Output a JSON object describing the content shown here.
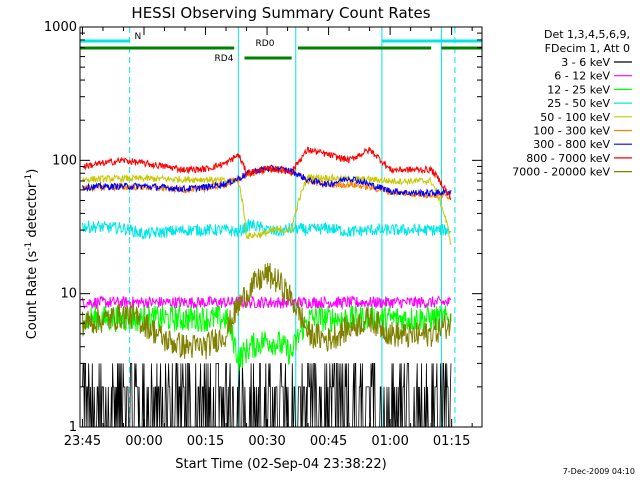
{
  "chart_data": {
    "type": "line",
    "title": "HESSI Observing Summary Count Rates",
    "xlabel": "Start Time (02-Sep-04 23:38:22)",
    "ylabel_main": "Count Rate (s",
    "ylabel_sup1": "-1",
    "ylabel_mid": " detector",
    "ylabel_sup2": "-1",
    "ylabel_end": ")",
    "y_scale": "log",
    "ylim": [
      1,
      1000
    ],
    "xlim_minutes": [
      -15.6,
      82.4
    ],
    "grid": false,
    "legend_position": "right",
    "x_ticks": [
      {
        "label": "23:45",
        "t": -15
      },
      {
        "label": "00:00",
        "t": 0
      },
      {
        "label": "00:15",
        "t": 15
      },
      {
        "label": "00:30",
        "t": 30
      },
      {
        "label": "00:45",
        "t": 45
      },
      {
        "label": "01:00",
        "t": 60
      },
      {
        "label": "01:15",
        "t": 75
      }
    ],
    "y_ticks": [
      {
        "label": "1",
        "v": 1
      },
      {
        "label": "10",
        "v": 10
      },
      {
        "label": "100",
        "v": 100
      },
      {
        "label": "1000",
        "v": 1000
      }
    ],
    "legend_header": [
      "Det 1,3,4,5,6,9,",
      "FDecim 1, Att 0"
    ],
    "series": [
      {
        "name": "3 - 6 keV",
        "color": "#000000",
        "t": [
          -15,
          -8,
          -5,
          0,
          5,
          10,
          15,
          20,
          23,
          26,
          30,
          33,
          36,
          40,
          45,
          50,
          55,
          60,
          65,
          70,
          75
        ],
        "y": [
          1.5,
          1.4,
          1.3,
          1.4,
          1.6,
          1.5,
          1.4,
          1.3,
          1.6,
          2.3,
          1.4,
          1.3,
          1.5,
          2.5,
          1.7,
          1.6,
          1.8,
          2.2,
          1.6,
          1.5,
          1.6
        ]
      },
      {
        "name": "6 - 12 keV",
        "color": "#ff00ff",
        "t": [
          -15,
          0,
          15,
          25,
          35,
          45,
          60,
          75
        ],
        "y": [
          8.6,
          8.6,
          8.6,
          8.6,
          8.6,
          8.6,
          8.6,
          8.6
        ]
      },
      {
        "name": "12 - 25 keV",
        "color": "#00ff00",
        "t": [
          -15,
          -8,
          -4,
          0,
          5,
          10,
          15,
          20,
          23,
          26,
          30,
          33,
          36,
          40,
          45,
          50,
          55,
          60,
          65,
          70,
          75
        ],
        "y": [
          6.5,
          6.5,
          6.5,
          6.5,
          6.5,
          6.5,
          6.5,
          6.5,
          3.2,
          4.0,
          4.5,
          4.2,
          3.5,
          6.5,
          6.5,
          6.5,
          6.5,
          6.5,
          6.5,
          6.5,
          6.5
        ]
      },
      {
        "name": "25 - 50 keV",
        "color": "#00e6e6",
        "t": [
          -15,
          -5,
          0,
          10,
          15,
          20,
          23,
          26,
          30,
          33,
          36,
          40,
          45,
          50,
          55,
          60,
          65,
          70,
          75
        ],
        "y": [
          32,
          31,
          28,
          30,
          30,
          30,
          29,
          33,
          30,
          29,
          31,
          30,
          31,
          29,
          30,
          30,
          30,
          30,
          30
        ]
      },
      {
        "name": "50 - 100 keV",
        "color": "#c8c800",
        "t": [
          -15,
          -5,
          0,
          10,
          15,
          20,
          23,
          25,
          29,
          32,
          36,
          40,
          45,
          50,
          55,
          60,
          65,
          70,
          75
        ],
        "y": [
          72,
          73,
          73,
          72,
          72,
          70,
          70,
          27,
          28,
          30,
          30,
          75,
          74,
          72,
          72,
          70,
          70,
          70,
          22
        ]
      },
      {
        "name": "100 - 300 keV",
        "color": "#ff8000",
        "t": [
          -15,
          -5,
          0,
          10,
          15,
          20,
          23,
          25,
          29,
          32,
          36,
          40,
          45,
          50,
          55,
          60,
          65,
          70,
          75
        ],
        "y": [
          62,
          63,
          63,
          60,
          62,
          66,
          72,
          78,
          85,
          86,
          82,
          70,
          65,
          66,
          63,
          58,
          56,
          55,
          54
        ]
      },
      {
        "name": "300 - 800 keV",
        "color": "#0000ff",
        "t": [
          -15,
          -5,
          0,
          10,
          15,
          20,
          23,
          25,
          29,
          32,
          36,
          40,
          45,
          50,
          55,
          60,
          65,
          70,
          75
        ],
        "y": [
          63,
          64,
          64,
          61,
          63,
          67,
          73,
          79,
          86,
          87,
          83,
          71,
          66,
          74,
          66,
          59,
          57,
          57,
          58
        ]
      },
      {
        "name": "800 - 7000 keV",
        "color": "#ff0000",
        "t": [
          -15,
          -5,
          0,
          10,
          15,
          20,
          23,
          25,
          29,
          32,
          36,
          40,
          45,
          50,
          55,
          60,
          65,
          70,
          75
        ],
        "y": [
          90,
          100,
          95,
          85,
          86,
          95,
          110,
          80,
          85,
          86,
          82,
          120,
          110,
          100,
          120,
          85,
          85,
          85,
          50
        ]
      },
      {
        "name": "7000 - 20000 keV",
        "color": "#808000",
        "t": [
          -15,
          -8,
          -4,
          0,
          5,
          10,
          15,
          20,
          23,
          26,
          30,
          33,
          36,
          40,
          45,
          50,
          55,
          60,
          65,
          70,
          75
        ],
        "y": [
          6,
          6.5,
          7,
          6,
          4.5,
          4,
          4,
          5,
          8,
          11,
          14,
          12,
          9,
          5,
          4.5,
          5.5,
          6.5,
          5,
          4.8,
          5,
          6
        ]
      }
    ],
    "status_bars": [
      {
        "label": "N",
        "color": "#00e6e6",
        "segments": [
          [
            -15.6,
            -3.5
          ],
          [
            58,
            82.4
          ]
        ],
        "level": 1
      },
      {
        "label": "RD0",
        "color": "#008000",
        "segments": [
          [
            -15.6,
            22
          ],
          [
            37.5,
            70
          ],
          [
            72.5,
            82.4
          ]
        ],
        "level": 2
      },
      {
        "label": "RD4",
        "color": "#008000",
        "segments": [
          [
            24.5,
            36
          ]
        ],
        "level": 3
      }
    ],
    "vertical_markers": [
      -3.5,
      23,
      37,
      58,
      72.5
    ],
    "solid_markers": [
      23,
      37,
      58,
      72.5
    ],
    "dashed_markers": [
      -3.5,
      75.8
    ],
    "footer_date": "7-Dec-2009 04:10"
  }
}
